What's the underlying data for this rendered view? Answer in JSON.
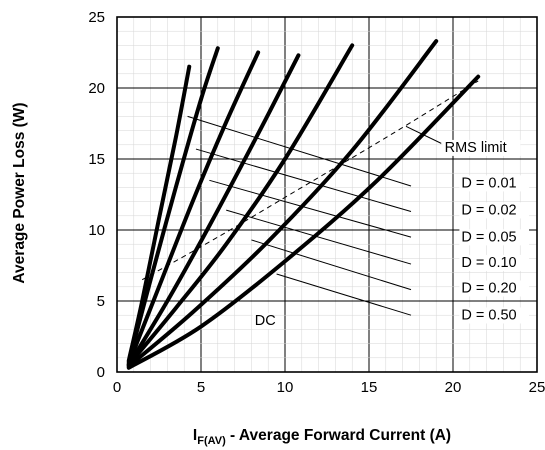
{
  "chart_data": {
    "type": "line",
    "xlabel_main": "I",
    "xlabel_sub": "F(AV)",
    "xlabel_rest": " - Average Forward Current (A)",
    "ylabel": "Average Power Loss (W)",
    "xlim": [
      0,
      25
    ],
    "ylim": [
      0,
      25
    ],
    "x_ticks": [
      "0",
      "5",
      "10",
      "15",
      "20",
      "25"
    ],
    "y_ticks": [
      "0",
      "5",
      "10",
      "15",
      "20",
      "25"
    ],
    "grid": true,
    "series": [
      {
        "x": [
          0.7,
          1.5,
          2.5,
          3.5,
          4.3
        ],
        "y": [
          0.8,
          5.0,
          10.8,
          16.5,
          21.5
        ]
      },
      {
        "x": [
          0.7,
          2.0,
          3.5,
          5.0,
          6.0
        ],
        "y": [
          0.7,
          6.5,
          13.0,
          19.2,
          22.8
        ]
      },
      {
        "x": [
          0.7,
          2.5,
          4.5,
          6.5,
          8.4
        ],
        "y": [
          0.6,
          6.0,
          12.0,
          17.6,
          22.5
        ]
      },
      {
        "x": [
          0.7,
          3.0,
          5.5,
          8.5,
          10.8
        ],
        "y": [
          0.5,
          5.0,
          10.3,
          17.0,
          22.3
        ]
      },
      {
        "x": [
          0.7,
          3.5,
          6.5,
          10.0,
          14.0
        ],
        "y": [
          0.5,
          4.5,
          9.0,
          15.0,
          23.0
        ]
      },
      {
        "x": [
          0.7,
          4.5,
          9.0,
          14.0,
          19.0
        ],
        "y": [
          0.4,
          4.2,
          9.2,
          15.6,
          23.3
        ]
      },
      {
        "x": [
          0.7,
          5.0,
          10.0,
          15.5,
          21.5
        ],
        "y": [
          0.3,
          3.2,
          7.8,
          13.5,
          20.8
        ]
      }
    ],
    "rms_limit": {
      "x": [
        1.5,
        6.0,
        11.0,
        16.0,
        21.5
      ],
      "y": [
        6.5,
        9.5,
        13.0,
        16.5,
        20.5
      ]
    },
    "d_lines": [
      {
        "label": "D = 0.01",
        "x": [
          4.2,
          17.5
        ],
        "y": [
          18.0,
          13.1
        ]
      },
      {
        "label": "D = 0.02",
        "x": [
          4.7,
          17.5
        ],
        "y": [
          15.7,
          11.3
        ]
      },
      {
        "label": "D = 0.05",
        "x": [
          5.5,
          17.5
        ],
        "y": [
          13.5,
          9.5
        ]
      },
      {
        "label": "D = 0.10",
        "x": [
          6.5,
          17.5
        ],
        "y": [
          11.4,
          7.6
        ]
      },
      {
        "label": "D = 0.20",
        "x": [
          8.0,
          17.5
        ],
        "y": [
          9.3,
          5.8
        ]
      },
      {
        "label": "D = 0.50",
        "x": [
          9.5,
          17.5
        ],
        "y": [
          6.9,
          4.0
        ]
      }
    ],
    "annotations": [
      {
        "text": "RMS limit",
        "x": 19.5,
        "y": 15.5
      },
      {
        "text": "D = 0.01",
        "x": 20.5,
        "y": 13.0
      },
      {
        "text": "D = 0.02",
        "x": 20.5,
        "y": 11.1
      },
      {
        "text": "D = 0.05",
        "x": 20.5,
        "y": 9.2
      },
      {
        "text": "D = 0.10",
        "x": 20.5,
        "y": 7.4
      },
      {
        "text": "D = 0.20",
        "x": 20.5,
        "y": 5.6
      },
      {
        "text": "D = 0.50",
        "x": 20.5,
        "y": 3.7
      },
      {
        "text": "DC",
        "x": 8.2,
        "y": 3.3
      }
    ]
  }
}
